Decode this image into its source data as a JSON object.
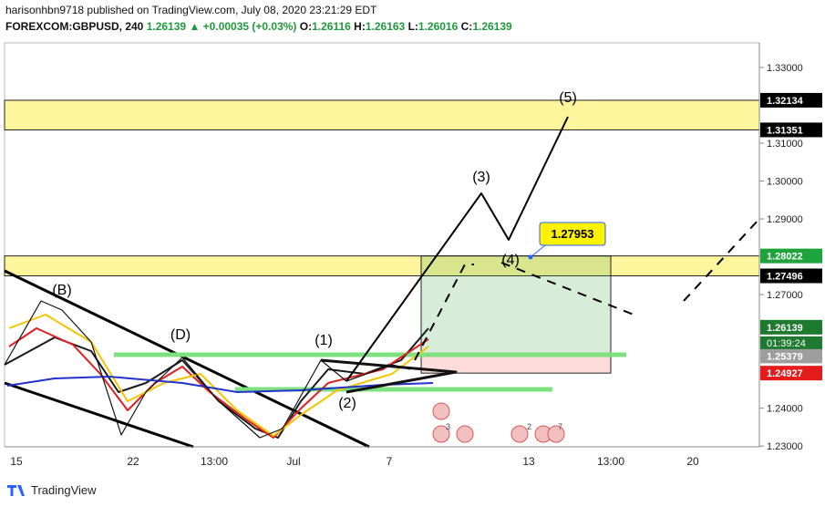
{
  "header": {
    "line1": "harisonhbn9718 published on TradingView.com, July 08, 2020 23:21:29 EDT",
    "symbol": "FOREXCOM:GBPUSD, 240",
    "last": "1.26139",
    "arrow": "▲",
    "change": "+0.00035 (+0.03%)",
    "o_label": "O:",
    "o": "1.26116",
    "h_label": "H:",
    "h": "1.26163",
    "l_label": "L:",
    "l": "1.26016",
    "c_label": "C:",
    "c": "1.26139"
  },
  "price_axis": {
    "ylim": [
      1.2298,
      1.3365
    ],
    "ticks": [
      {
        "value": 1.33,
        "label": "1.33000"
      },
      {
        "value": 1.31,
        "label": "1.31000"
      },
      {
        "value": 1.3,
        "label": "1.30000"
      },
      {
        "value": 1.29,
        "label": "1.29000"
      },
      {
        "value": 1.27,
        "label": "1.27000"
      },
      {
        "value": 1.24,
        "label": "1.24000"
      },
      {
        "value": 1.23,
        "label": "1.23000"
      }
    ]
  },
  "price_tags": [
    {
      "value": 1.32134,
      "label": "1.32134",
      "color": "#000000"
    },
    {
      "value": 1.31351,
      "label": "1.31351",
      "color": "#000000"
    },
    {
      "value": 1.28022,
      "label": "1.28022",
      "color": "#1fa33c"
    },
    {
      "value": 1.27496,
      "label": "1.27496",
      "color": "#000000"
    },
    {
      "value": 1.26139,
      "label": "1.26139",
      "color": "#1e7a2f"
    },
    {
      "value": 1.25379,
      "label": "1.25379",
      "color": "#9e9e9e"
    },
    {
      "value": 1.24927,
      "label": "1.24927",
      "color": "#e51b1b"
    }
  ],
  "countdown": "01:39:24",
  "time_axis": [
    "15",
    "22",
    "13:00",
    "Jul",
    "7",
    "13",
    "13:00",
    "20"
  ],
  "waves": [
    "(B)",
    "(D)",
    "(1)",
    "(2)",
    "(3)",
    "(4)",
    "(5)"
  ],
  "callout": "1.27953",
  "events": [
    "3",
    "2",
    "7"
  ],
  "footer": "TradingView"
}
